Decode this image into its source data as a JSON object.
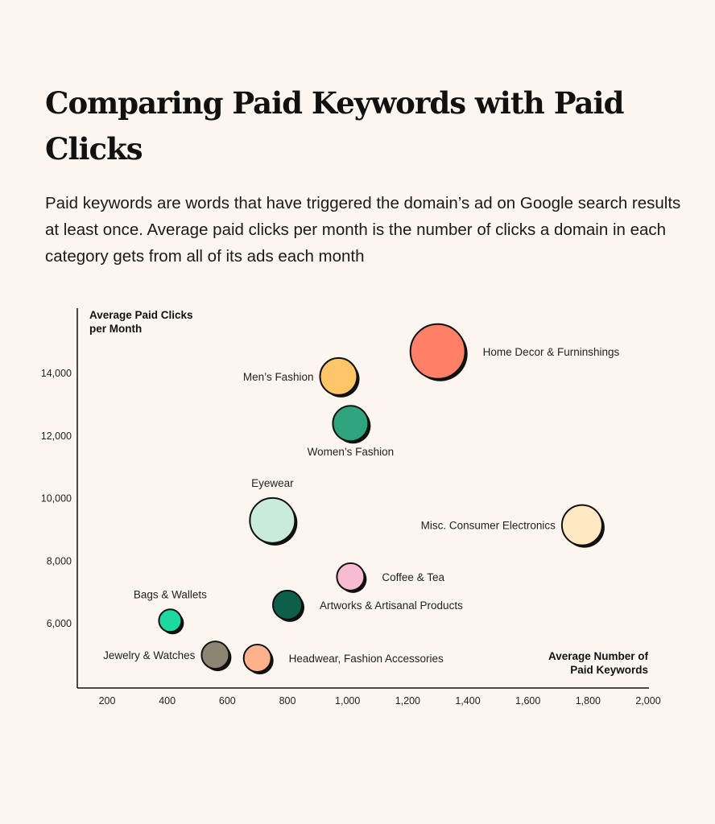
{
  "chart_data": {
    "type": "scatter",
    "title": "Comparing Paid Keywords with Paid Clicks",
    "subtitle": "Paid keywords are words that have triggered the domain’s ad on Google search results at least once. Average paid clicks per month is the number of clicks a domain in each category gets from all of its ads each month",
    "xlabel": [
      "Average Number of",
      "Paid Keywords"
    ],
    "ylabel": [
      "Average Paid Clicks",
      "per Month"
    ],
    "xlim": [
      100,
      2000
    ],
    "ylim": [
      3000,
      16000
    ],
    "xticks": [
      200,
      400,
      600,
      800,
      1000,
      1200,
      1400,
      1600,
      1800,
      2000
    ],
    "xtick_labels": [
      "200",
      "400",
      "600",
      "800",
      "1,000",
      "1,200",
      "1,400",
      "1,600",
      "1,800",
      "2,000"
    ],
    "yticks": [
      6000,
      8000,
      10000,
      12000,
      14000
    ],
    "ytick_labels": [
      "6,000",
      "8,000",
      "10,000",
      "12,000",
      "14,000"
    ],
    "grid": false,
    "points": [
      {
        "name": "Home Decor & Furninshings",
        "x": 1300,
        "y": 14700,
        "size": 34,
        "color": "#ff8066"
      },
      {
        "name": "Men’s Fashion",
        "x": 970,
        "y": 13900,
        "size": 23,
        "color": "#ffc566"
      },
      {
        "name": "Women’s Fashion",
        "x": 1010,
        "y": 12400,
        "size": 22,
        "color": "#2fa47e"
      },
      {
        "name": "Eyewear",
        "x": 750,
        "y": 9300,
        "size": 28,
        "color": "#c9ebdd"
      },
      {
        "name": "Misc. Consumer Electronics",
        "x": 1780,
        "y": 9150,
        "size": 25,
        "color": "#ffe9c2"
      },
      {
        "name": "Coffee & Tea",
        "x": 1010,
        "y": 7500,
        "size": 17,
        "color": "#f8bcd2"
      },
      {
        "name": "Artworks & Artisanal Products",
        "x": 800,
        "y": 6600,
        "size": 18,
        "color": "#0d5e4b"
      },
      {
        "name": "Bags & Wallets",
        "x": 410,
        "y": 6100,
        "size": 14,
        "color": "#1dd9a0"
      },
      {
        "name": "Jewelry & Watches",
        "x": 560,
        "y": 5000,
        "size": 17,
        "color": "#8c8571"
      },
      {
        "name": "Headwear, Fashion Accessories",
        "x": 700,
        "y": 4900,
        "size": 17,
        "color": "#ffb28c"
      }
    ]
  }
}
